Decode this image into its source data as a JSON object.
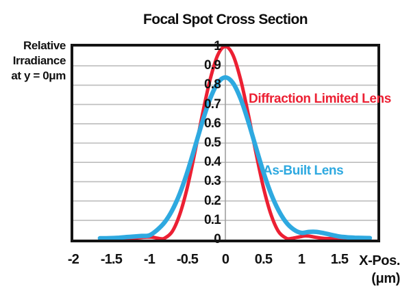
{
  "title": "Focal Spot Cross Section",
  "y_axis": {
    "label_lines": [
      "Relative",
      "Irradiance",
      "at y = 0μm"
    ],
    "ticks": [
      "1",
      "0.9",
      "0.8",
      "0.7",
      "0.6",
      "0.5",
      "0.4",
      "0.3",
      "0.2",
      "0.1",
      "0"
    ],
    "tick_values": [
      1,
      0.9,
      0.8,
      0.7,
      0.6,
      0.5,
      0.4,
      0.3,
      0.2,
      0.1,
      0
    ]
  },
  "x_axis": {
    "ticks": [
      "-2",
      "-1.5",
      "-1",
      "-0.5",
      "0",
      "0.5",
      "1",
      "1.5"
    ],
    "tick_values": [
      -2,
      -1.5,
      -1,
      -0.5,
      0,
      0.5,
      1,
      1.5
    ],
    "title_line1": "X-Pos.",
    "title_line2": "(μm)"
  },
  "colors": {
    "red_series": "#EC2033",
    "blue_series": "#2EA9E0",
    "gridline": "#bcbcbc",
    "zero_line": "#9e9e9e",
    "border": "#141414"
  },
  "chart_data": {
    "type": "line",
    "title": "Focal Spot Cross Section",
    "xlabel": "X-Pos. (μm)",
    "ylabel": "Relative Irradiance at y = 0μm",
    "xlim": [
      -2,
      2
    ],
    "ylim": [
      0,
      1
    ],
    "x_ticks": [
      -2,
      -1.5,
      -1,
      -0.5,
      0,
      0.5,
      1,
      1.5
    ],
    "y_ticks": [
      0,
      0.1,
      0.2,
      0.3,
      0.4,
      0.5,
      0.6,
      0.7,
      0.8,
      0.9,
      1
    ],
    "grid": "horizontal gridlines every 0.1 plus vertical line at x=0",
    "legend_position": "inline labels beside curves",
    "series": [
      {
        "name": "Diffraction Limited Lens",
        "color": "#EC2033",
        "stroke_width": 5,
        "peak": 1.0,
        "points": [
          [
            -1.6,
            0.004
          ],
          [
            -1.5,
            0.004
          ],
          [
            -1.4,
            0.004
          ],
          [
            -1.3,
            0.005
          ],
          [
            -1.2,
            0.007
          ],
          [
            -1.1,
            0.011
          ],
          [
            -1.0,
            0.013
          ],
          [
            -0.95,
            0.012
          ],
          [
            -0.9,
            0.008
          ],
          [
            -0.85,
            0.005
          ],
          [
            -0.8,
            0.007
          ],
          [
            -0.7,
            0.041
          ],
          [
            -0.6,
            0.13
          ],
          [
            -0.5,
            0.271
          ],
          [
            -0.4,
            0.454
          ],
          [
            -0.3,
            0.652
          ],
          [
            -0.2,
            0.83
          ],
          [
            -0.1,
            0.956
          ],
          [
            0,
            1.0
          ],
          [
            0.1,
            0.956
          ],
          [
            0.2,
            0.83
          ],
          [
            0.3,
            0.652
          ],
          [
            0.4,
            0.454
          ],
          [
            0.5,
            0.271
          ],
          [
            0.6,
            0.13
          ],
          [
            0.7,
            0.041
          ],
          [
            0.8,
            0.007
          ],
          [
            0.85,
            0.005
          ],
          [
            0.9,
            0.008
          ],
          [
            1.0,
            0.016
          ],
          [
            1.05,
            0.019
          ],
          [
            1.1,
            0.018
          ],
          [
            1.2,
            0.011
          ],
          [
            1.3,
            0.006
          ],
          [
            1.4,
            0.005
          ],
          [
            1.5,
            0.005
          ],
          [
            1.6,
            0.005
          ],
          [
            1.7,
            0.005
          ],
          [
            1.8,
            0.005
          ],
          [
            1.9,
            0.005
          ]
        ]
      },
      {
        "name": "As-Built Lens",
        "color": "#2EA9E0",
        "stroke_width": 6.5,
        "peak": 0.84,
        "points": [
          [
            -1.65,
            0.007
          ],
          [
            -1.5,
            0.008
          ],
          [
            -1.4,
            0.01
          ],
          [
            -1.3,
            0.013
          ],
          [
            -1.2,
            0.016
          ],
          [
            -1.1,
            0.019
          ],
          [
            -1.0,
            0.022
          ],
          [
            -0.9,
            0.049
          ],
          [
            -0.8,
            0.089
          ],
          [
            -0.7,
            0.151
          ],
          [
            -0.6,
            0.238
          ],
          [
            -0.5,
            0.35
          ],
          [
            -0.4,
            0.48
          ],
          [
            -0.3,
            0.613
          ],
          [
            -0.2,
            0.73
          ],
          [
            -0.1,
            0.811
          ],
          [
            0,
            0.84
          ],
          [
            0.1,
            0.811
          ],
          [
            0.2,
            0.73
          ],
          [
            0.3,
            0.613
          ],
          [
            0.4,
            0.48
          ],
          [
            0.5,
            0.35
          ],
          [
            0.6,
            0.238
          ],
          [
            0.7,
            0.151
          ],
          [
            0.8,
            0.089
          ],
          [
            0.9,
            0.052
          ],
          [
            1.0,
            0.035
          ],
          [
            1.1,
            0.04
          ],
          [
            1.2,
            0.04
          ],
          [
            1.3,
            0.033
          ],
          [
            1.4,
            0.024
          ],
          [
            1.5,
            0.016
          ],
          [
            1.6,
            0.012
          ],
          [
            1.7,
            0.01
          ],
          [
            1.8,
            0.009
          ],
          [
            1.9,
            0.008
          ]
        ]
      }
    ]
  }
}
